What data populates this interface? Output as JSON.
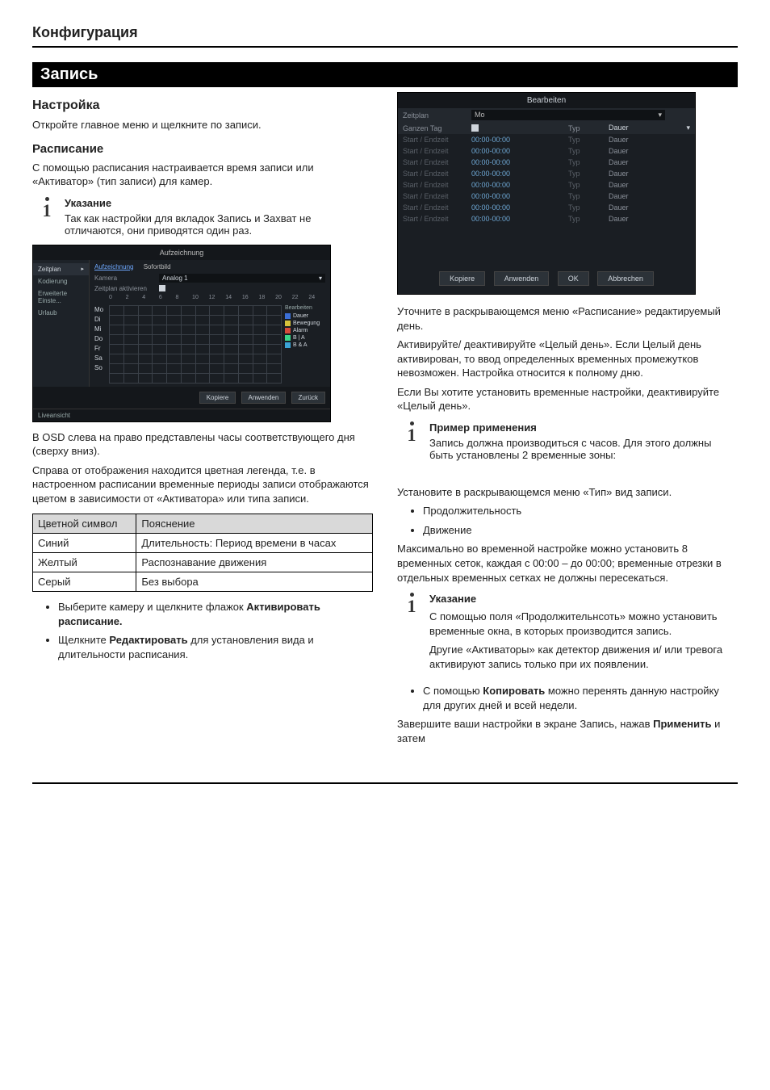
{
  "page_header": "Конфигурация",
  "section_title": "Запись",
  "left": {
    "h_setup": "Настройка",
    "p_setup": "Откройте главное меню и щелкните по записи.",
    "h_schedule": "Расписание",
    "p_schedule": "С помощью расписания настраивается время записи или «Активатор» (тип записи) для камер.",
    "note1_title": "Указание",
    "note1_body": "Так как настройки для вкладок Запись и Захват не отличаются, они приводятся один раз.",
    "osd": {
      "title": "Aufzeichnung",
      "side_items": [
        "Zeitplan",
        "Kodierung",
        "Erweiterte Einste...",
        "Urlaub"
      ],
      "tabs": [
        "Aufzeichnung",
        "Sofortbild"
      ],
      "row_camera_lbl": "Kamera",
      "row_camera_val": "Analog 1",
      "row_activate_lbl": "Zeitplan aktivieren",
      "hours": [
        "0",
        "2",
        "4",
        "6",
        "8",
        "10",
        "12",
        "14",
        "16",
        "18",
        "20",
        "22",
        "24"
      ],
      "days": [
        "Mo",
        "Di",
        "Mi",
        "Do",
        "Fr",
        "Sa",
        "So"
      ],
      "legend_title": "Bearbeiten",
      "legend": [
        {
          "label": "Dauer",
          "color": "#3b6fd6"
        },
        {
          "label": "Bewegung",
          "color": "#d6c23b"
        },
        {
          "label": "Alarm",
          "color": "#d64a3b"
        },
        {
          "label": "B | A",
          "color": "#3bd68a"
        },
        {
          "label": "B & A",
          "color": "#3ba4d6"
        }
      ],
      "btn_kopiere": "Kopiere",
      "btn_anwenden": "Anwenden",
      "btn_zuruck": "Zurück",
      "liveview": "Liveansicht"
    },
    "p_after_osd_1": "В OSD слева на право представлены часы соответствующего дня (сверху вниз).",
    "p_after_osd_2": "Справа от отображения находится цветная легенда, т.е. в настроенном расписании временные периоды записи отображаются цветом в зависимости от «Активатора» или типа записи.",
    "color_table": {
      "h1": "Цветной символ",
      "h2": "Пояснение",
      "rows": [
        [
          "Синий",
          "Длительность: Период времени в часах"
        ],
        [
          "Желтый",
          "Распознавание движения"
        ],
        [
          "Серый",
          "Без выбора"
        ]
      ]
    },
    "bullets": [
      {
        "pre": "Выберите камеру и щелкните флажок ",
        "bold": "Активировать расписание.",
        "post": ""
      },
      {
        "pre": "Щелкните ",
        "bold": "Редактировать",
        "post": " для установления вида и длительности расписания."
      }
    ]
  },
  "right": {
    "edit": {
      "title": "Bearbeiten",
      "row_zeitplan_lbl": "Zeitplan",
      "row_zeitplan_val": "Mo",
      "row_ganztag_lbl": "Ganzen Tag",
      "col_typ": "Typ",
      "col_dauer": "Dauer",
      "slot_lbl": "Start / Endzeit",
      "slot_val": "00:00-00:00",
      "slot_count": 8,
      "btns": [
        "Kopiere",
        "Anwenden",
        "OK",
        "Abbrechen"
      ]
    },
    "p1": "Уточните в раскрывающемся меню «Расписание» редактируемый день.",
    "p2": "Активируйте/ деактивируйте «Целый день». Если Целый день активирован, то ввод определенных временных промежутков невозможен. Настройка относится к полному дню.",
    "p3": "Если Вы хотите установить временные настройки, деактивируйте «Целый день».",
    "note_example_title": "Пример применения",
    "note_example_body": "Запись должна производиться с часов. Для этого должны быть установлены 2 временные зоны:",
    "p4": "Установите в раскрывающемся меню «Тип» вид записи.",
    "type_bullets": [
      "Продолжительность",
      "Движение"
    ],
    "p5": "Максимально во временной настройке можно установить 8 временных сеток, каждая с 00:00 – до 00:00; временные отрезки в отдельных временных сетках не должны пересекаться.",
    "note2_title": "Указание",
    "note2_body1": "С помощью поля «Продолжительнсоть» можно установить временные окна, в которых производится запись.",
    "note2_body2": "Другие «Активаторы» как детектор движения и/ или тревога активируют запись только при их появлении.",
    "copy_bullet_pre": "С помощью ",
    "copy_bullet_bold": "Копировать",
    "copy_bullet_post": " можно перенять данную настройку для других дней и всей недели.",
    "p_end_pre": "Завершите ваши настройки в экране Запись, нажав ",
    "p_end_bold": "Применить",
    "p_end_post": " и затем"
  }
}
